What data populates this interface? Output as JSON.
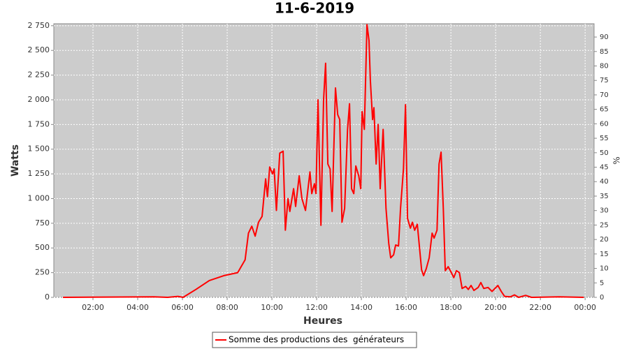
{
  "chart_data": {
    "type": "line",
    "title": "11-6-2019",
    "xlabel": "Heures",
    "ylabel": "Watts",
    "y2label": "%",
    "x": [
      0.66,
      4.72,
      5.34,
      5.8,
      6.03,
      6.6,
      7.2,
      7.85,
      8.47,
      8.8,
      8.95,
      9.1,
      9.25,
      9.4,
      9.56,
      9.72,
      9.8,
      9.9,
      10.03,
      10.1,
      10.2,
      10.35,
      10.5,
      10.6,
      10.72,
      10.8,
      10.97,
      11.06,
      11.22,
      11.34,
      11.5,
      11.7,
      11.78,
      11.9,
      11.97,
      12.06,
      12.19,
      12.31,
      12.4,
      12.5,
      12.6,
      12.69,
      12.84,
      12.94,
      13.03,
      13.13,
      13.25,
      13.38,
      13.47,
      13.56,
      13.66,
      13.75,
      13.88,
      13.97,
      14.03,
      14.13,
      14.25,
      14.34,
      14.4,
      14.5,
      14.56,
      14.66,
      14.75,
      14.84,
      14.97,
      15.1,
      15.22,
      15.31,
      15.44,
      15.53,
      15.66,
      15.75,
      15.88,
      15.97,
      16.06,
      16.19,
      16.28,
      16.38,
      16.5,
      16.6,
      16.69,
      16.78,
      16.9,
      17.03,
      17.16,
      17.25,
      17.38,
      17.47,
      17.56,
      17.66,
      17.75,
      17.88,
      18.0,
      18.13,
      18.25,
      18.38,
      18.5,
      18.66,
      18.78,
      18.9,
      19.03,
      19.22,
      19.34,
      19.47,
      19.66,
      19.84,
      20.1,
      20.25,
      20.4,
      20.66,
      20.84,
      21.03,
      21.34,
      21.6,
      22.84,
      23.94
    ],
    "series": [
      {
        "name": "Somme des productions des  générateurs",
        "color": "#ff0000",
        "values": [
          0,
          5,
          0,
          10,
          0,
          80,
          170,
          220,
          250,
          380,
          650,
          720,
          620,
          760,
          820,
          1200,
          1020,
          1320,
          1250,
          1300,
          880,
          1460,
          1480,
          680,
          1000,
          870,
          1100,
          920,
          1230,
          1000,
          880,
          1270,
          1050,
          1150,
          1050,
          2000,
          730,
          2000,
          2370,
          1350,
          1300,
          870,
          2120,
          1850,
          1800,
          760,
          900,
          1700,
          1960,
          1100,
          1050,
          1330,
          1230,
          1100,
          1880,
          1700,
          2760,
          2600,
          2200,
          1800,
          1920,
          1350,
          1750,
          1100,
          1700,
          900,
          550,
          400,
          430,
          530,
          520,
          900,
          1300,
          1950,
          800,
          700,
          760,
          680,
          740,
          500,
          280,
          220,
          290,
          400,
          650,
          600,
          680,
          1350,
          1470,
          900,
          270,
          310,
          260,
          200,
          270,
          250,
          90,
          110,
          80,
          120,
          70,
          100,
          150,
          90,
          100,
          60,
          120,
          60,
          10,
          5,
          25,
          0,
          20,
          0,
          5,
          0
        ]
      }
    ],
    "xlim": [
      0.25,
      24.4
    ],
    "xticks": [
      {
        "value": 2,
        "label": "02:00"
      },
      {
        "value": 4,
        "label": "04:00"
      },
      {
        "value": 6,
        "label": "06:00"
      },
      {
        "value": 8,
        "label": "08:00"
      },
      {
        "value": 10,
        "label": "10:00"
      },
      {
        "value": 12,
        "label": "12:00"
      },
      {
        "value": 14,
        "label": "14:00"
      },
      {
        "value": 16,
        "label": "16:00"
      },
      {
        "value": 18,
        "label": "18:00"
      },
      {
        "value": 20,
        "label": "20:00"
      },
      {
        "value": 22,
        "label": "22:00"
      },
      {
        "value": 24,
        "label": "00:00"
      }
    ],
    "ylim": [
      0,
      2770
    ],
    "yticks": [
      0,
      250,
      500,
      750,
      {
        "value": 1000,
        "label": "1 000"
      },
      {
        "value": 1250,
        "label": "1 250"
      },
      {
        "value": 1500,
        "label": "1 500"
      },
      {
        "value": 1750,
        "label": "1 750"
      },
      {
        "value": 2000,
        "label": "2 000"
      },
      {
        "value": 2250,
        "label": "2 250"
      },
      {
        "value": 2500,
        "label": "2 500"
      },
      {
        "value": 2750,
        "label": "2 750"
      }
    ],
    "y2lim": [
      0,
      94.6
    ],
    "y2ticks": [
      0,
      5,
      10,
      15,
      20,
      25,
      30,
      35,
      40,
      45,
      50,
      55,
      60,
      65,
      70,
      75,
      80,
      85,
      90
    ],
    "grid": true,
    "legend": "bottom"
  }
}
